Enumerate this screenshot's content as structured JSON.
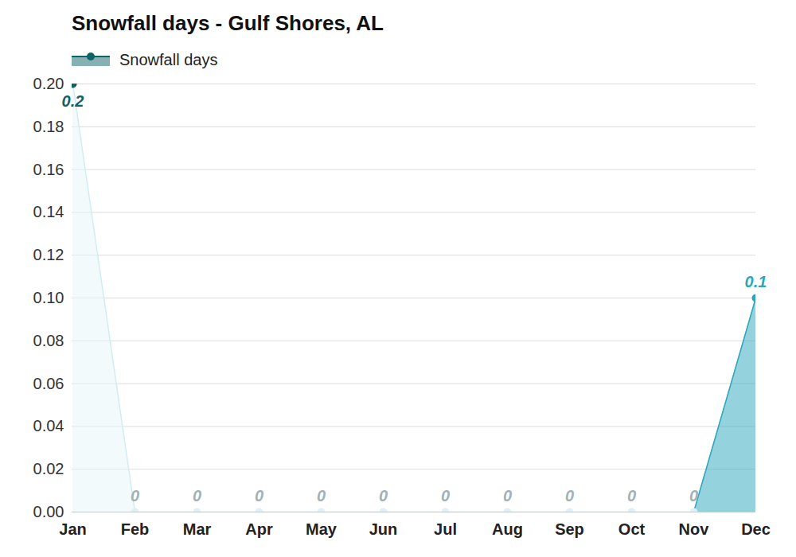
{
  "chart_data": {
    "type": "area",
    "title": "Snowfall days - Gulf Shores, AL",
    "categories": [
      "Jan",
      "Feb",
      "Mar",
      "Apr",
      "May",
      "Jun",
      "Jul",
      "Aug",
      "Sep",
      "Oct",
      "Nov",
      "Dec"
    ],
    "series": [
      {
        "name": "Snowfall days",
        "color": "#0e6368",
        "values": [
          0.2,
          0,
          0,
          0,
          0,
          0,
          0,
          0,
          0,
          0,
          0,
          0.1
        ],
        "colors": [
          "#0e6368",
          "#9fb3b8",
          "#9fb3b8",
          "#9fb3b8",
          "#9fb3b8",
          "#9fb3b8",
          "#9fb3b8",
          "#9fb3b8",
          "#9fb3b8",
          "#9fb3b8",
          "#9fb3b8",
          "#2aa8bb"
        ]
      }
    ],
    "ylim": [
      0,
      0.2
    ],
    "yticks": [
      {
        "value": 0,
        "label": "0.00"
      },
      {
        "value": 0.02,
        "label": "0.02"
      },
      {
        "value": 0.04,
        "label": "0.04"
      },
      {
        "value": 0.06,
        "label": "0.06"
      },
      {
        "value": 0.08,
        "label": "0.08"
      },
      {
        "value": 0.1,
        "label": "0.10"
      },
      {
        "value": 0.12,
        "label": "0.12"
      },
      {
        "value": 0.14,
        "label": "0.14"
      },
      {
        "value": 0.16,
        "label": "0.16"
      },
      {
        "value": 0.18,
        "label": "0.18"
      },
      {
        "value": 0.2,
        "label": "0.20"
      }
    ],
    "grid": true,
    "data_labels": true,
    "legend": "top-left"
  }
}
